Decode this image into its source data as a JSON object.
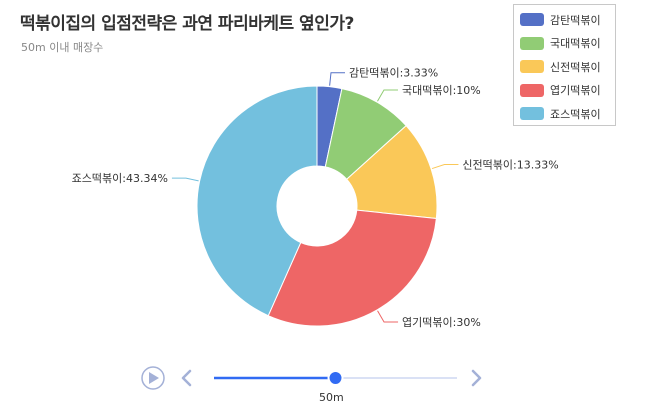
{
  "title": "떡볶이집의 입점전략은 과연 파리바케트 옆인가?",
  "subtitle": "50m 이내 매장수",
  "chart_data": {
    "type": "pie",
    "donut": true,
    "legend_position": "top-right",
    "labels": [
      "감탄떡볶이",
      "국대떡볶이",
      "신전떡볶이",
      "엽기떡볶이",
      "죠스떡볶이"
    ],
    "values": [
      3.33,
      10,
      13.33,
      30,
      43.34
    ],
    "slice_labels": [
      "감탄떡볶이:3.33%",
      "국대떡볶이:10%",
      "신전떡볶이:13.33%",
      "엽기떡볶이:30%",
      "죠스떡볶이:43.34%"
    ],
    "colors": [
      "#5470c6",
      "#91cc75",
      "#fac858",
      "#ee6666",
      "#73c0de"
    ]
  },
  "timeline": {
    "current_label": "50m",
    "position_fraction": 0.5,
    "colors": {
      "active": "#316bf3",
      "track": "#dae1f5",
      "control": "#a4b1d7"
    }
  },
  "icons": {
    "play": "play-icon",
    "prev": "chevron-left-icon",
    "next": "chevron-right-icon"
  }
}
